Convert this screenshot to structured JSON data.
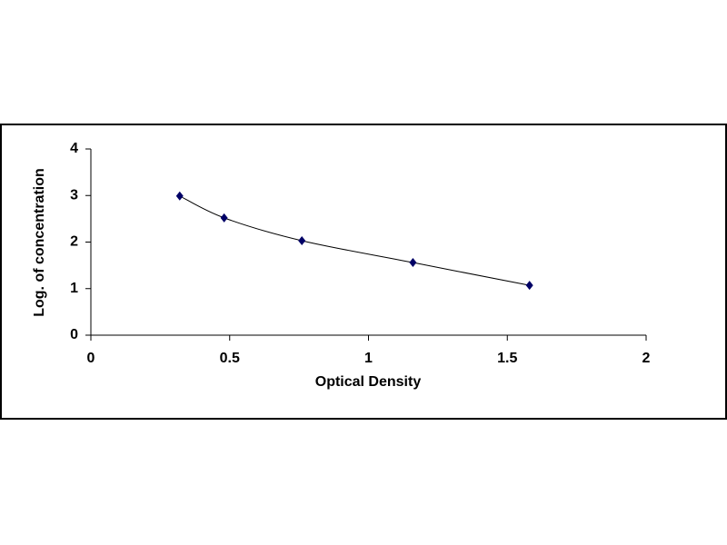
{
  "chart_data": {
    "type": "line",
    "x_label": "Optical Density",
    "y_label": "Log. of concentration",
    "series": [
      {
        "color": "#000066",
        "x": [
          0.32,
          0.48,
          0.76,
          1.16,
          1.58
        ],
        "values": [
          2.99,
          2.52,
          2.03,
          1.56,
          1.07
        ]
      }
    ],
    "xlim": [
      0,
      2
    ],
    "xticks": [
      0,
      0.5,
      1,
      1.5,
      2
    ],
    "ylim": [
      0,
      4
    ],
    "yticks": [
      0,
      1,
      2,
      3,
      4
    ],
    "grid": false,
    "smooth": true
  }
}
